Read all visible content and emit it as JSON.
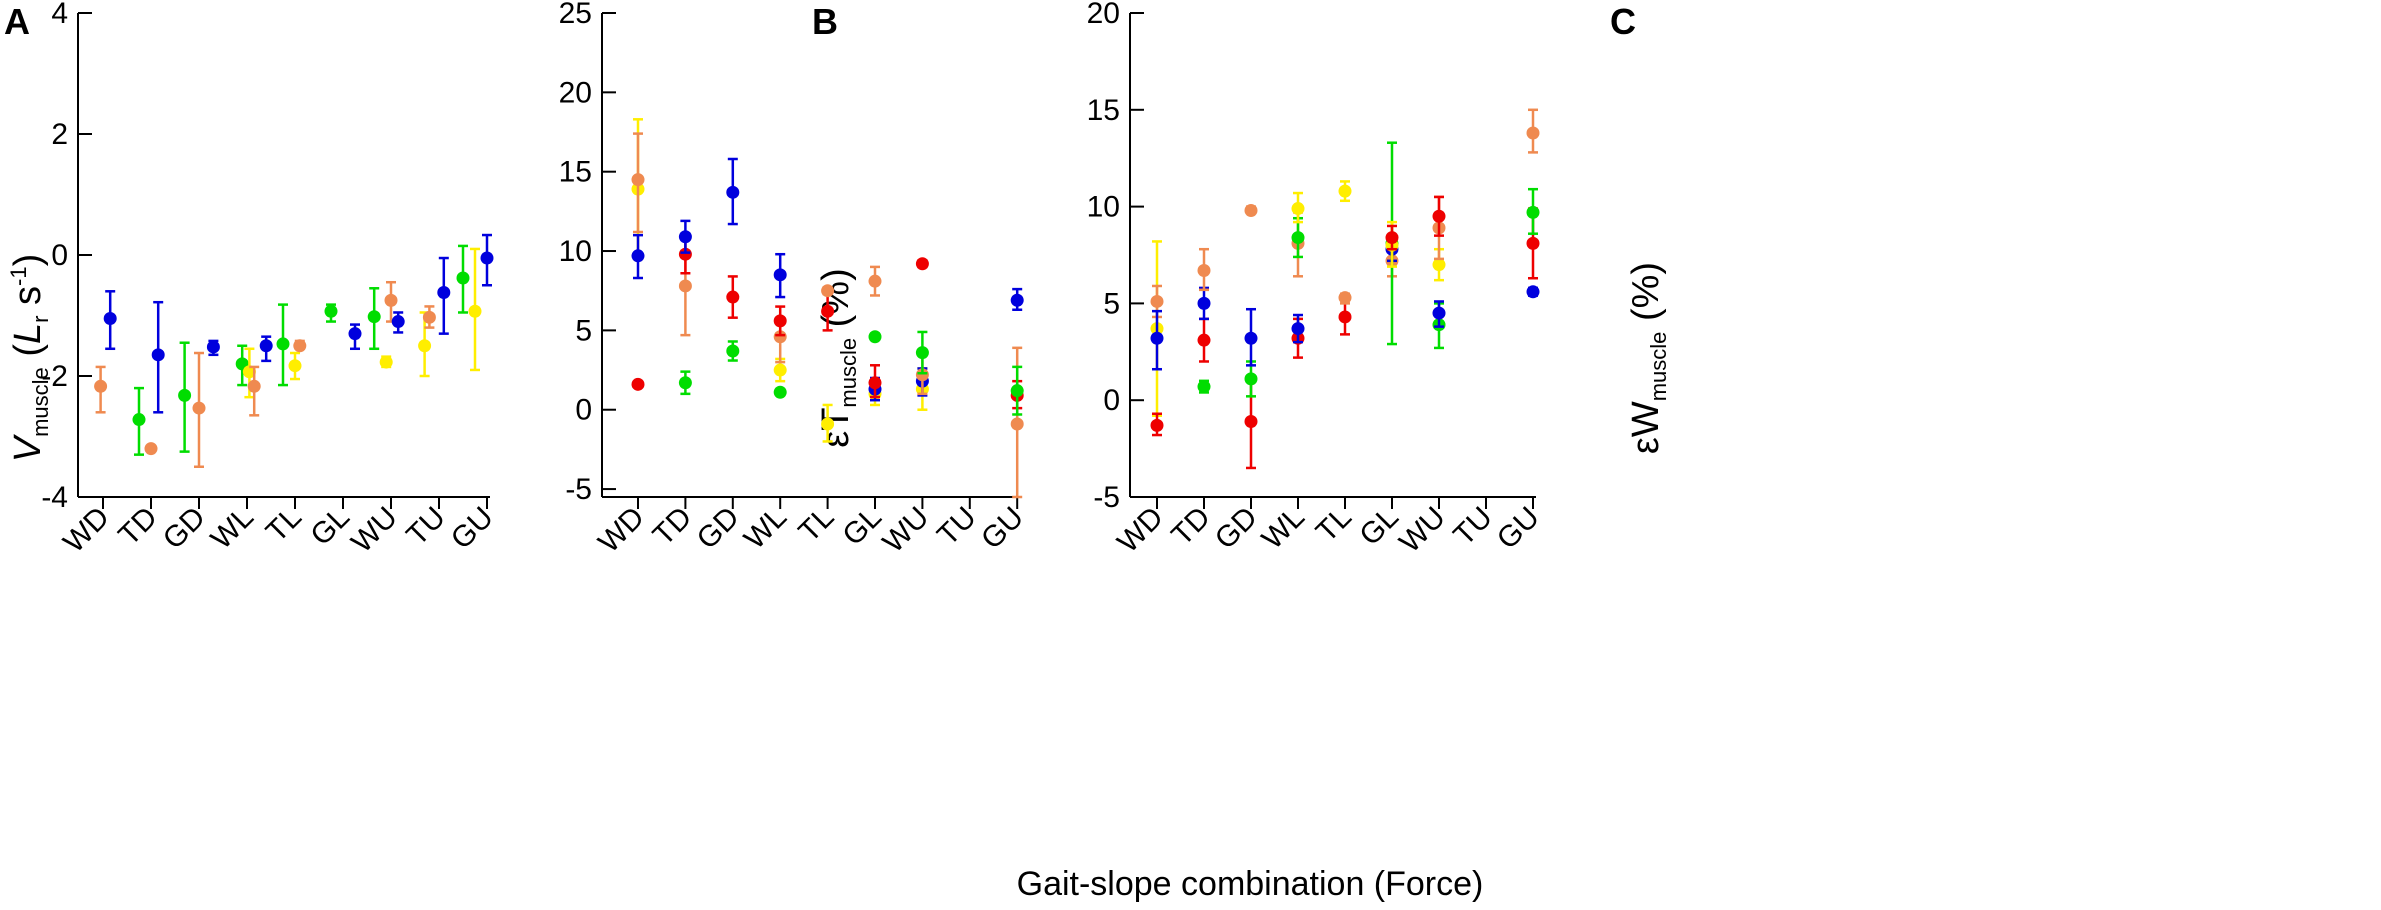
{
  "colors": {
    "blue": "#0000dd",
    "orange": "#ef8a50",
    "green": "#00dd00",
    "red": "#ee0000",
    "yellow": "#ffee00",
    "axis": "#000000"
  },
  "xlabel": "Gait-slope combination (Force)",
  "chart_data": [
    {
      "type": "scatter",
      "panel": "A",
      "ylabel_main": "V",
      "ylabel_sub": "muscle",
      "ylabel_unit_open": " (",
      "ylabel_unit_var": "L",
      "ylabel_unit_var_sub": "r",
      "ylabel_unit_s": " s",
      "ylabel_unit_exp": "-1",
      "ylabel_unit_close": ")",
      "categories": [
        "WD",
        "TD",
        "GD",
        "WL",
        "TL",
        "GL",
        "WU",
        "TU",
        "GU"
      ],
      "ylim": [
        -4,
        4
      ],
      "yticks": [
        -4,
        -2,
        0,
        2,
        4
      ],
      "ytick_labels": [
        "-4",
        "-2",
        "0",
        "2",
        "4"
      ],
      "points": [
        {
          "cat": 0,
          "off": 0.15,
          "color": "blue",
          "y": -1.05,
          "lo": -1.55,
          "hi": -0.6
        },
        {
          "cat": 0,
          "off": -0.05,
          "color": "orange",
          "y": -2.17,
          "lo": -2.6,
          "hi": -1.85
        },
        {
          "cat": 1,
          "off": -0.25,
          "color": "green",
          "y": -2.72,
          "lo": -3.3,
          "hi": -2.2
        },
        {
          "cat": 1,
          "off": 0.0,
          "color": "orange",
          "y": -3.2,
          "lo": -3.2,
          "hi": -3.2
        },
        {
          "cat": 1,
          "off": 0.15,
          "color": "blue",
          "y": -1.65,
          "lo": -2.6,
          "hi": -0.78
        },
        {
          "cat": 2,
          "off": -0.3,
          "color": "green",
          "y": -2.32,
          "lo": -3.25,
          "hi": -1.45
        },
        {
          "cat": 2,
          "off": 0.0,
          "color": "orange",
          "y": -2.53,
          "lo": -3.5,
          "hi": -1.62
        },
        {
          "cat": 2,
          "off": 0.3,
          "color": "blue",
          "y": -1.52,
          "lo": -1.65,
          "hi": -1.42
        },
        {
          "cat": 3,
          "off": -0.1,
          "color": "green",
          "y": -1.8,
          "lo": -2.15,
          "hi": -1.5
        },
        {
          "cat": 3,
          "off": 0.05,
          "color": "yellow",
          "y": -1.93,
          "lo": -2.35,
          "hi": -1.55
        },
        {
          "cat": 3,
          "off": 0.15,
          "color": "orange",
          "y": -2.17,
          "lo": -2.65,
          "hi": -1.85
        },
        {
          "cat": 3,
          "off": 0.4,
          "color": "blue",
          "y": -1.5,
          "lo": -1.75,
          "hi": -1.35
        },
        {
          "cat": 4,
          "off": -0.25,
          "color": "green",
          "y": -1.47,
          "lo": -2.15,
          "hi": -0.82
        },
        {
          "cat": 4,
          "off": 0.0,
          "color": "yellow",
          "y": -1.83,
          "lo": -2.05,
          "hi": -1.62
        },
        {
          "cat": 4,
          "off": 0.1,
          "color": "orange",
          "y": -1.5,
          "lo": -1.55,
          "hi": -1.42
        },
        {
          "cat": 5,
          "off": -0.25,
          "color": "green",
          "y": -0.93,
          "lo": -1.1,
          "hi": -0.82
        },
        {
          "cat": 5,
          "off": 0.25,
          "color": "blue",
          "y": -1.3,
          "lo": -1.55,
          "hi": -1.15
        },
        {
          "cat": 6,
          "off": -0.35,
          "color": "green",
          "y": -1.02,
          "lo": -1.55,
          "hi": -0.55
        },
        {
          "cat": 6,
          "off": -0.1,
          "color": "yellow",
          "y": -1.77,
          "lo": -1.85,
          "hi": -1.68
        },
        {
          "cat": 6,
          "off": 0.0,
          "color": "orange",
          "y": -0.75,
          "lo": -1.1,
          "hi": -0.45
        },
        {
          "cat": 6,
          "off": 0.15,
          "color": "blue",
          "y": -1.1,
          "lo": -1.28,
          "hi": -0.95
        },
        {
          "cat": 7,
          "off": -0.3,
          "color": "yellow",
          "y": -1.5,
          "lo": -2.0,
          "hi": -0.95
        },
        {
          "cat": 7,
          "off": -0.2,
          "color": "orange",
          "y": -1.03,
          "lo": -1.2,
          "hi": -0.85
        },
        {
          "cat": 7,
          "off": 0.1,
          "color": "blue",
          "y": -0.62,
          "lo": -1.3,
          "hi": -0.05
        },
        {
          "cat": 8,
          "off": -0.5,
          "color": "green",
          "y": -0.38,
          "lo": -0.95,
          "hi": 0.15
        },
        {
          "cat": 8,
          "off": -0.25,
          "color": "yellow",
          "y": -0.93,
          "lo": -1.9,
          "hi": 0.1
        },
        {
          "cat": 8,
          "off": 0.0,
          "color": "blue",
          "y": -0.05,
          "lo": -0.5,
          "hi": 0.33
        }
      ]
    },
    {
      "type": "scatter",
      "panel": "B",
      "ylabel_main": "εT",
      "ylabel_sub": "muscle",
      "ylabel_unit": " (%)",
      "categories": [
        "WD",
        "TD",
        "GD",
        "WL",
        "TL",
        "GL",
        "WU",
        "TU",
        "GU"
      ],
      "ylim": [
        -5.5,
        25
      ],
      "yticks": [
        -5,
        0,
        5,
        10,
        15,
        20,
        25
      ],
      "ytick_labels": [
        "-5",
        "0",
        "5",
        "10",
        "15",
        "20",
        "25"
      ],
      "points": [
        {
          "cat": 0,
          "off": 0.0,
          "color": "yellow",
          "y": 13.9,
          "lo": 9.5,
          "hi": 18.3
        },
        {
          "cat": 0,
          "off": 0.0,
          "color": "orange",
          "y": 14.5,
          "lo": 11.2,
          "hi": 17.4
        },
        {
          "cat": 0,
          "off": 0.0,
          "color": "blue",
          "y": 9.7,
          "lo": 8.3,
          "hi": 11.0
        },
        {
          "cat": 0,
          "off": 0.0,
          "color": "red",
          "y": 1.6,
          "lo": 1.5,
          "hi": 1.75
        },
        {
          "cat": 1,
          "off": 0.0,
          "color": "green",
          "y": 1.7,
          "lo": 1.0,
          "hi": 2.4
        },
        {
          "cat": 1,
          "off": 0.0,
          "color": "orange",
          "y": 7.8,
          "lo": 4.7,
          "hi": 10.8
        },
        {
          "cat": 1,
          "off": 0.0,
          "color": "red",
          "y": 9.8,
          "lo": 8.6,
          "hi": 11.0
        },
        {
          "cat": 1,
          "off": 0.0,
          "color": "blue",
          "y": 10.9,
          "lo": 9.9,
          "hi": 11.9
        },
        {
          "cat": 2,
          "off": 0.0,
          "color": "green",
          "y": 3.7,
          "lo": 3.1,
          "hi": 4.3
        },
        {
          "cat": 2,
          "off": 0.0,
          "color": "red",
          "y": 7.1,
          "lo": 5.8,
          "hi": 8.4
        },
        {
          "cat": 2,
          "off": 0.0,
          "color": "blue",
          "y": 13.7,
          "lo": 11.7,
          "hi": 15.8
        },
        {
          "cat": 3,
          "off": 0.0,
          "color": "green",
          "y": 1.1,
          "lo": 1.0,
          "hi": 1.2
        },
        {
          "cat": 3,
          "off": 0.0,
          "color": "yellow",
          "y": 2.5,
          "lo": 1.8,
          "hi": 3.2
        },
        {
          "cat": 3,
          "off": 0.0,
          "color": "orange",
          "y": 4.6,
          "lo": 3.0,
          "hi": 5.5
        },
        {
          "cat": 3,
          "off": 0.0,
          "color": "red",
          "y": 5.6,
          "lo": 4.7,
          "hi": 6.5
        },
        {
          "cat": 3,
          "off": 0.0,
          "color": "blue",
          "y": 8.5,
          "lo": 7.1,
          "hi": 9.8
        },
        {
          "cat": 4,
          "off": 0.0,
          "color": "yellow",
          "y": -0.9,
          "lo": -2.0,
          "hi": 0.3
        },
        {
          "cat": 4,
          "off": 0.0,
          "color": "red",
          "y": 6.2,
          "lo": 5.0,
          "hi": 7.3
        },
        {
          "cat": 4,
          "off": 0.0,
          "color": "orange",
          "y": 7.5,
          "lo": 7.3,
          "hi": 7.7
        },
        {
          "cat": 5,
          "off": 0.0,
          "color": "yellow",
          "y": 1.0,
          "lo": 0.3,
          "hi": 1.8
        },
        {
          "cat": 5,
          "off": 0.0,
          "color": "blue",
          "y": 1.3,
          "lo": 0.6,
          "hi": 2.0
        },
        {
          "cat": 5,
          "off": 0.0,
          "color": "red",
          "y": 1.7,
          "lo": 0.8,
          "hi": 2.8
        },
        {
          "cat": 5,
          "off": 0.0,
          "color": "green",
          "y": 4.6,
          "lo": 4.5,
          "hi": 4.7
        },
        {
          "cat": 5,
          "off": 0.0,
          "color": "orange",
          "y": 8.1,
          "lo": 7.2,
          "hi": 9.0
        },
        {
          "cat": 6,
          "off": 0.0,
          "color": "yellow",
          "y": 1.3,
          "lo": 0.0,
          "hi": 2.6
        },
        {
          "cat": 6,
          "off": 0.0,
          "color": "blue",
          "y": 1.8,
          "lo": 0.9,
          "hi": 2.6
        },
        {
          "cat": 6,
          "off": 0.0,
          "color": "orange",
          "y": 2.2,
          "lo": 1.0,
          "hi": 3.4
        },
        {
          "cat": 6,
          "off": 0.0,
          "color": "green",
          "y": 3.6,
          "lo": 2.3,
          "hi": 4.9
        },
        {
          "cat": 6,
          "off": 0.0,
          "color": "red",
          "y": 9.2,
          "lo": 9.0,
          "hi": 9.4
        },
        {
          "cat": 8,
          "off": 0.0,
          "color": "orange",
          "y": -0.9,
          "lo": -5.5,
          "hi": 3.9
        },
        {
          "cat": 8,
          "off": 0.0,
          "color": "red",
          "y": 0.9,
          "lo": 0.1,
          "hi": 1.8
        },
        {
          "cat": 8,
          "off": 0.0,
          "color": "green",
          "y": 1.2,
          "lo": -0.3,
          "hi": 2.7
        },
        {
          "cat": 8,
          "off": 0.0,
          "color": "blue",
          "y": 6.9,
          "lo": 6.3,
          "hi": 7.6
        }
      ]
    },
    {
      "type": "scatter",
      "panel": "C",
      "ylabel_main": "εW",
      "ylabel_sub": "muscle",
      "ylabel_unit": " (%)",
      "categories": [
        "WD",
        "TD",
        "GD",
        "WL",
        "TL",
        "GL",
        "WU",
        "TU",
        "GU"
      ],
      "ylim": [
        -5,
        20
      ],
      "yticks": [
        -5,
        0,
        5,
        10,
        15,
        20
      ],
      "ytick_labels": [
        "-5",
        "0",
        "5",
        "10",
        "15",
        "20"
      ],
      "points": [
        {
          "cat": 0,
          "off": 0.0,
          "color": "yellow",
          "y": 3.7,
          "lo": -0.8,
          "hi": 8.2
        },
        {
          "cat": 0,
          "off": 0.0,
          "color": "orange",
          "y": 5.1,
          "lo": 4.3,
          "hi": 5.9
        },
        {
          "cat": 0,
          "off": 0.0,
          "color": "blue",
          "y": 3.2,
          "lo": 1.6,
          "hi": 4.6
        },
        {
          "cat": 0,
          "off": 0.0,
          "color": "red",
          "y": -1.3,
          "lo": -1.8,
          "hi": -0.7
        },
        {
          "cat": 1,
          "off": 0.0,
          "color": "green",
          "y": 0.7,
          "lo": 0.4,
          "hi": 1.0
        },
        {
          "cat": 1,
          "off": 0.0,
          "color": "red",
          "y": 3.1,
          "lo": 2.0,
          "hi": 4.2
        },
        {
          "cat": 1,
          "off": 0.0,
          "color": "blue",
          "y": 5.0,
          "lo": 4.2,
          "hi": 5.8
        },
        {
          "cat": 1,
          "off": 0.0,
          "color": "orange",
          "y": 6.7,
          "lo": 5.7,
          "hi": 7.8
        },
        {
          "cat": 2,
          "off": 0.0,
          "color": "red",
          "y": -1.1,
          "lo": -3.5,
          "hi": 1.0
        },
        {
          "cat": 2,
          "off": 0.0,
          "color": "green",
          "y": 1.1,
          "lo": 0.2,
          "hi": 2.0
        },
        {
          "cat": 2,
          "off": 0.0,
          "color": "blue",
          "y": 3.2,
          "lo": 1.8,
          "hi": 4.7
        },
        {
          "cat": 2,
          "off": 0.0,
          "color": "orange",
          "y": 9.8,
          "lo": 9.7,
          "hi": 10.0
        },
        {
          "cat": 3,
          "off": 0.0,
          "color": "red",
          "y": 3.2,
          "lo": 2.2,
          "hi": 4.2
        },
        {
          "cat": 3,
          "off": 0.0,
          "color": "blue",
          "y": 3.7,
          "lo": 3.0,
          "hi": 4.4
        },
        {
          "cat": 3,
          "off": 0.0,
          "color": "orange",
          "y": 8.1,
          "lo": 6.4,
          "hi": 9.7
        },
        {
          "cat": 3,
          "off": 0.0,
          "color": "green",
          "y": 8.4,
          "lo": 7.4,
          "hi": 9.4
        },
        {
          "cat": 3,
          "off": 0.0,
          "color": "yellow",
          "y": 9.9,
          "lo": 9.2,
          "hi": 10.7
        },
        {
          "cat": 4,
          "off": 0.0,
          "color": "red",
          "y": 4.3,
          "lo": 3.4,
          "hi": 5.2
        },
        {
          "cat": 4,
          "off": 0.0,
          "color": "orange",
          "y": 5.3,
          "lo": 5.0,
          "hi": 5.5
        },
        {
          "cat": 4,
          "off": 0.0,
          "color": "yellow",
          "y": 10.8,
          "lo": 10.3,
          "hi": 11.3
        },
        {
          "cat": 5,
          "off": 0.0,
          "color": "orange",
          "y": 7.2,
          "lo": 6.4,
          "hi": 8.0
        },
        {
          "cat": 5,
          "off": 0.0,
          "color": "blue",
          "y": 7.8,
          "lo": 7.2,
          "hi": 8.4
        },
        {
          "cat": 5,
          "off": 0.0,
          "color": "green",
          "y": 8.1,
          "lo": 2.9,
          "hi": 13.3
        },
        {
          "cat": 5,
          "off": 0.0,
          "color": "yellow",
          "y": 8.0,
          "lo": 6.9,
          "hi": 9.2
        },
        {
          "cat": 5,
          "off": 0.0,
          "color": "red",
          "y": 8.4,
          "lo": 7.8,
          "hi": 9.0
        },
        {
          "cat": 6,
          "off": 0.0,
          "color": "green",
          "y": 3.9,
          "lo": 2.7,
          "hi": 5.0
        },
        {
          "cat": 6,
          "off": 0.0,
          "color": "blue",
          "y": 4.5,
          "lo": 3.8,
          "hi": 5.1
        },
        {
          "cat": 6,
          "off": 0.0,
          "color": "yellow",
          "y": 7.0,
          "lo": 6.2,
          "hi": 7.8
        },
        {
          "cat": 6,
          "off": 0.0,
          "color": "orange",
          "y": 8.9,
          "lo": 7.3,
          "hi": 10.5
        },
        {
          "cat": 6,
          "off": 0.0,
          "color": "red",
          "y": 9.5,
          "lo": 8.5,
          "hi": 10.5
        },
        {
          "cat": 8,
          "off": 0.0,
          "color": "blue",
          "y": 5.6,
          "lo": 5.4,
          "hi": 5.8
        },
        {
          "cat": 8,
          "off": 0.0,
          "color": "red",
          "y": 8.1,
          "lo": 6.3,
          "hi": 9.9
        },
        {
          "cat": 8,
          "off": 0.0,
          "color": "green",
          "y": 9.7,
          "lo": 8.6,
          "hi": 10.9
        },
        {
          "cat": 8,
          "off": 0.0,
          "color": "orange",
          "y": 13.8,
          "lo": 12.8,
          "hi": 15.0
        }
      ]
    }
  ]
}
